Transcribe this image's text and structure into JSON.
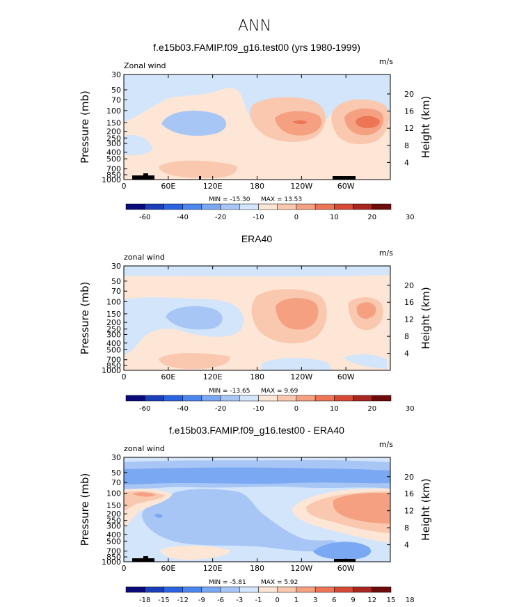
{
  "figure": {
    "title": "ANN",
    "colors": {
      "cb_wind": [
        "#0a0a7a",
        "#1a3fb8",
        "#2b64e0",
        "#4a86ee",
        "#7aa8f2",
        "#a8c6f5",
        "#d2e5fa",
        "#fde6d6",
        "#f9c8ae",
        "#f4a081",
        "#ec7556",
        "#d64a35",
        "#a82620",
        "#6e0b0b"
      ],
      "cb_diff": [
        "#0a0a7a",
        "#1a3fb8",
        "#2b64e0",
        "#4a86ee",
        "#7aa8f2",
        "#a8c6f5",
        "#d2e5fa",
        "#fde6d6",
        "#f9c8ae",
        "#f4a081",
        "#ec7556",
        "#d64a35",
        "#a82620",
        "#6e0b0b"
      ]
    }
  },
  "chart_data": [
    {
      "type": "heatmap",
      "title": "f.e15b03.FAMIP.f09_g16.test00 (yrs 1980-1999)",
      "variable": "Zonal wind",
      "units": "m/s",
      "xlabel": "",
      "ylabel": "Pressure (mb)",
      "ylabel_right": "Height (km)",
      "xticks": [
        "0",
        "60E",
        "120E",
        "180",
        "120W",
        "60W"
      ],
      "xtick_values": [
        0,
        60,
        120,
        180,
        240,
        300
      ],
      "xlim": [
        0,
        360
      ],
      "yticks": [
        "30",
        "50",
        "70",
        "100",
        "150",
        "200",
        "250",
        "300",
        "400",
        "500",
        "700",
        "850",
        "1000"
      ],
      "ytick_values": [
        30,
        50,
        70,
        100,
        150,
        200,
        250,
        300,
        400,
        500,
        700,
        850,
        1000
      ],
      "ylim": [
        1000,
        30
      ],
      "height_ticks": [
        "4",
        "8",
        "12",
        "16",
        "20"
      ],
      "height_values": [
        4,
        8,
        12,
        16,
        20
      ],
      "min_text": "MIN = -15.30",
      "max_text": "MAX = 13.53",
      "min": -15.3,
      "max": 13.53,
      "colorbar_levels": [
        "-60",
        "-40",
        "-20",
        "-10",
        "0",
        "10",
        "20",
        "30"
      ],
      "colorbar_key": "cb_wind",
      "regions": [
        {
          "level": -1,
          "lon": 40,
          "lat_p": 50,
          "width": 180,
          "top": 30,
          "bottom": 150
        },
        {
          "level": -5,
          "lon": 95,
          "lat_p": 150,
          "width": 60,
          "top": 120,
          "bottom": 200
        },
        {
          "level": 5,
          "lon": 230,
          "lat_p": 150,
          "width": 90,
          "top": 90,
          "bottom": 260
        },
        {
          "level": 10,
          "lon": 225,
          "lat_p": 150,
          "width": 45,
          "top": 110,
          "bottom": 200
        },
        {
          "level": 5,
          "lon": 320,
          "lat_p": 150,
          "width": 55,
          "top": 90,
          "bottom": 240
        },
        {
          "level": 10,
          "lon": 318,
          "lat_p": 150,
          "width": 30,
          "top": 115,
          "bottom": 200
        }
      ]
    },
    {
      "type": "heatmap",
      "title": "ERA40",
      "variable": "zonal wind",
      "units": "m/s",
      "xlabel": "",
      "ylabel": "Pressure (mb)",
      "ylabel_right": "Height (km)",
      "xticks": [
        "0",
        "60E",
        "120E",
        "180",
        "120W",
        "60W"
      ],
      "xtick_values": [
        0,
        60,
        120,
        180,
        240,
        300
      ],
      "xlim": [
        0,
        360
      ],
      "yticks": [
        "30",
        "50",
        "70",
        "100",
        "150",
        "200",
        "250",
        "300",
        "400",
        "500",
        "700",
        "850",
        "1000"
      ],
      "ytick_values": [
        30,
        50,
        70,
        100,
        150,
        200,
        250,
        300,
        400,
        500,
        700,
        850,
        1000
      ],
      "ylim": [
        1000,
        30
      ],
      "height_ticks": [
        "4",
        "8",
        "12",
        "16",
        "20"
      ],
      "height_values": [
        4,
        8,
        12,
        16,
        20
      ],
      "min_text": "MIN = -13.65",
      "max_text": "MAX = 9.69",
      "min": -13.65,
      "max": 9.69,
      "colorbar_levels": [
        "-60",
        "-40",
        "-20",
        "-10",
        "0",
        "10",
        "20",
        "30"
      ],
      "colorbar_key": "cb_wind"
    },
    {
      "type": "heatmap",
      "title": "f.e15b03.FAMIP.f09_g16.test00 - ERA40",
      "variable": "zonal wind",
      "units": "m/s",
      "xlabel": "",
      "ylabel": "Pressure (mb)",
      "ylabel_right": "Height (km)",
      "xticks": [
        "0",
        "60E",
        "120E",
        "180",
        "120W",
        "60W"
      ],
      "xtick_values": [
        0,
        60,
        120,
        180,
        240,
        300
      ],
      "xlim": [
        0,
        360
      ],
      "yticks": [
        "30",
        "50",
        "70",
        "100",
        "150",
        "200",
        "250",
        "300",
        "400",
        "500",
        "700",
        "850",
        "1000"
      ],
      "ytick_values": [
        30,
        50,
        70,
        100,
        150,
        200,
        250,
        300,
        400,
        500,
        700,
        850,
        1000
      ],
      "ylim": [
        1000,
        30
      ],
      "height_ticks": [
        "4",
        "8",
        "12",
        "16",
        "20"
      ],
      "height_values": [
        4,
        8,
        12,
        16,
        20
      ],
      "min_text": "MIN = -5.81",
      "max_text": "MAX = 5.92",
      "min": -5.81,
      "max": 5.92,
      "colorbar_levels": [
        "-18",
        "-15",
        "-12",
        "-9",
        "-6",
        "-3",
        "-1",
        "0",
        "1",
        "3",
        "6",
        "9",
        "12",
        "15",
        "18"
      ],
      "colorbar_key": "cb_diff"
    }
  ]
}
